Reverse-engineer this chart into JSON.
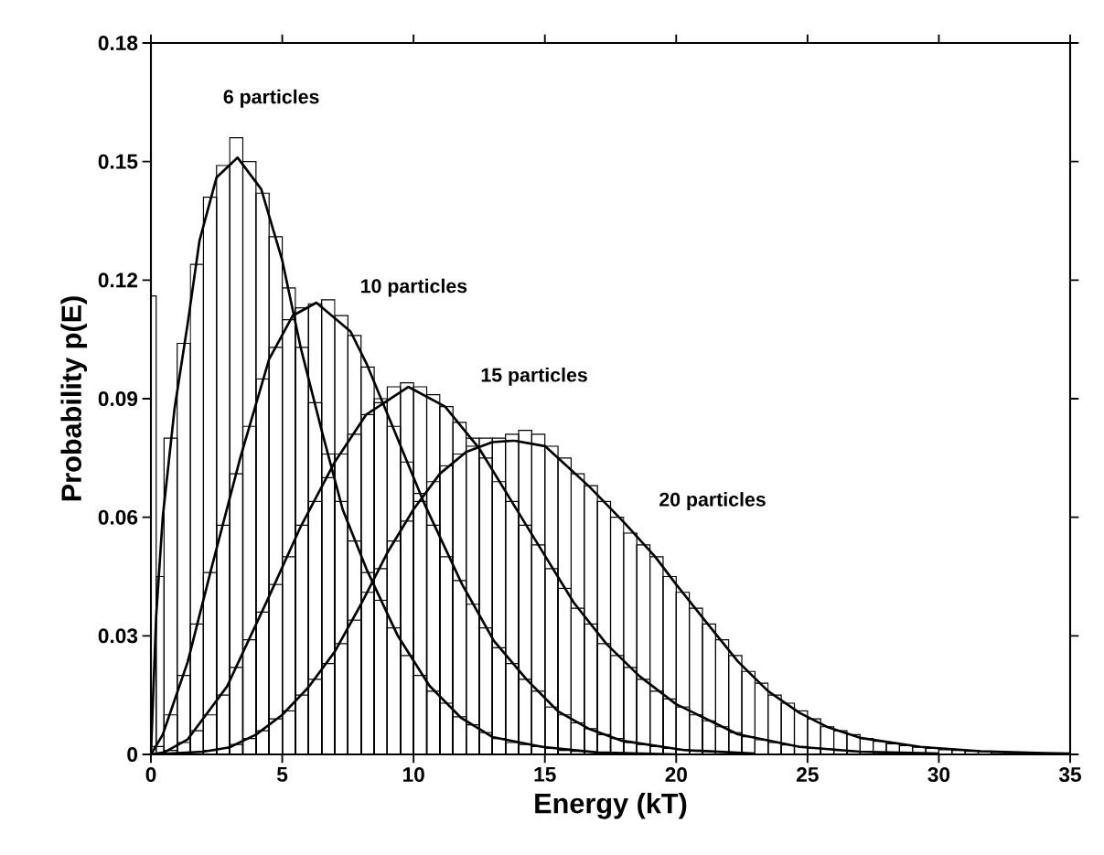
{
  "chart_data": {
    "type": "histogram",
    "xlabel": "Energy (kT)",
    "ylabel": "Probability p(E)",
    "xlim": [
      0,
      35
    ],
    "xticks": [
      0,
      5,
      10,
      15,
      20,
      25,
      30,
      35
    ],
    "ylim": [
      0,
      0.18
    ],
    "yticks": [
      0,
      0.03,
      0.06,
      0.09,
      0.12,
      0.15,
      0.18
    ],
    "annotations": [
      "6 particles",
      "10 particles",
      "15 particles",
      "20 particles"
    ],
    "series": [
      {
        "color": "#000000",
        "bins": [
          0,
          0.2,
          0.5,
          1.0,
          1.5,
          2.0,
          2.5,
          3.0,
          3.5,
          4.0,
          4.5,
          5.0,
          5.5,
          6.0,
          6.5,
          7.0,
          7.5,
          8.0,
          8.5,
          9.0,
          9.5,
          10.0,
          10.5,
          11.0,
          11.5,
          12.0,
          12.5,
          13.0,
          13.5,
          14.0,
          14.5,
          15.0,
          15.5,
          16.0,
          16.5
        ],
        "values": [
          0.116,
          0.045,
          0.08,
          0.104,
          0.124,
          0.141,
          0.149,
          0.156,
          0.15,
          0.142,
          0.131,
          0.118,
          0.103,
          0.089,
          0.076,
          0.064,
          0.054,
          0.046,
          0.039,
          0.032,
          0.025,
          0.02,
          0.016,
          0.013,
          0.0095,
          0.0075,
          0.0055,
          0.004,
          0.003,
          0.0025,
          0.002,
          0.0015,
          0.001,
          0.0008
        ]
      },
      {
        "color": "#000000",
        "bins": [
          0,
          0.5,
          1.0,
          1.5,
          2.0,
          2.5,
          3.0,
          3.5,
          4.0,
          4.5,
          5.0,
          5.5,
          6.0,
          6.5,
          7.0,
          7.5,
          8.0,
          8.5,
          9.0,
          9.5,
          10.0,
          10.5,
          11.0,
          11.5,
          12.0,
          12.5,
          13.0,
          13.5,
          14.0,
          14.5,
          15.0,
          15.5,
          16.0,
          16.5,
          17.0,
          17.5,
          18.0,
          18.5,
          19.0,
          19.5,
          20.0,
          20.5,
          21.0,
          21.5,
          22.0
        ],
        "values": [
          0.002,
          0.01,
          0.02,
          0.033,
          0.046,
          0.058,
          0.071,
          0.083,
          0.095,
          0.103,
          0.11,
          0.113,
          0.114,
          0.115,
          0.111,
          0.106,
          0.098,
          0.09,
          0.083,
          0.074,
          0.066,
          0.058,
          0.05,
          0.044,
          0.038,
          0.032,
          0.027,
          0.023,
          0.019,
          0.016,
          0.012,
          0.01,
          0.008,
          0.0065,
          0.005,
          0.004,
          0.003,
          0.0025,
          0.002,
          0.0015,
          0.0012,
          0.001,
          0.0008,
          null
        ]
      },
      {
        "color": "#000000",
        "bins": [
          0,
          0.5,
          1.0,
          1.5,
          2.0,
          2.5,
          3.0,
          3.5,
          4.0,
          4.5,
          5.0,
          5.5,
          6.0,
          6.5,
          7.0,
          7.5,
          8.0,
          8.5,
          9.0,
          9.5,
          10.0,
          10.5,
          11.0,
          11.5,
          12.0,
          12.5,
          13.0,
          13.5,
          14.0,
          14.5,
          15.0,
          15.5,
          16.0,
          16.5,
          17.0,
          17.5,
          18.0,
          18.5,
          19.0,
          19.5,
          20.0,
          20.5,
          21.0,
          21.5,
          22.0,
          22.5,
          23.0,
          23.5,
          24.0,
          24.5,
          25.0,
          25.5,
          26.0,
          26.5,
          27.0,
          27.5,
          28.0
        ],
        "values": [
          0.0002,
          0.001,
          0.003,
          0.006,
          0.01,
          0.015,
          0.022,
          0.029,
          0.036,
          0.043,
          0.05,
          0.058,
          0.064,
          0.07,
          0.076,
          0.081,
          0.086,
          0.089,
          0.093,
          0.094,
          0.093,
          0.091,
          0.088,
          0.084,
          0.08,
          0.075,
          0.069,
          0.064,
          0.058,
          0.053,
          0.047,
          0.042,
          0.037,
          0.033,
          0.028,
          0.025,
          0.022,
          0.019,
          0.016,
          0.014,
          0.012,
          0.01,
          0.0085,
          0.007,
          0.0055,
          0.0045,
          0.0037,
          0.003,
          0.0024,
          0.002,
          0.0016,
          0.0013,
          0.001,
          0.0008,
          null,
          0.0005
        ]
      },
      {
        "color": "#000000",
        "bins": [
          1.0,
          1.5,
          2.0,
          2.5,
          3.0,
          3.5,
          4.0,
          4.5,
          5.0,
          5.5,
          6.0,
          6.5,
          7.0,
          7.5,
          8.0,
          8.5,
          9.0,
          9.5,
          10.0,
          10.5,
          11.0,
          11.5,
          12.0,
          12.5,
          13.0,
          13.5,
          14.0,
          14.5,
          15.0,
          15.5,
          16.0,
          16.5,
          17.0,
          17.5,
          18.0,
          18.5,
          19.0,
          19.5,
          20.0,
          20.5,
          21.0,
          21.5,
          22.0,
          22.5,
          23.0,
          23.5,
          24.0,
          24.5,
          25.0,
          25.5,
          26.0,
          26.5,
          27.0,
          27.5,
          28.0,
          28.5,
          29.0,
          29.5,
          30.0,
          30.5,
          31.0,
          31.5,
          32.0,
          32.5,
          33.0,
          33.5,
          34.0,
          34.5,
          35.0
        ],
        "values": [
          0.0003,
          0.0006,
          0.001,
          0.0015,
          0.0025,
          0.004,
          0.006,
          0.009,
          0.011,
          0.015,
          0.019,
          0.023,
          0.028,
          0.034,
          0.041,
          0.047,
          0.054,
          0.059,
          0.064,
          0.069,
          0.073,
          0.076,
          0.078,
          0.08,
          0.08,
          0.081,
          0.082,
          0.081,
          0.078,
          0.075,
          0.071,
          0.068,
          0.064,
          0.06,
          0.056,
          0.053,
          0.05,
          0.045,
          0.041,
          0.037,
          0.033,
          0.029,
          0.025,
          0.021,
          0.018,
          0.015,
          0.013,
          0.011,
          0.009,
          0.007,
          0.006,
          0.005,
          0.004,
          0.0033,
          0.0027,
          0.0022,
          0.0018,
          0.0015,
          0.0012,
          0.001,
          0.0008,
          0.0007,
          0.0005,
          0.0004,
          0.0003,
          0.0003,
          0.0002,
          0.0002
        ]
      },
      {
        "type": "line",
        "color": "#000000",
        "x": [
          0,
          0.2,
          0.45,
          0.9,
          1.4,
          1.85,
          2.5,
          3.3,
          4.2,
          5.0,
          5.7,
          6.5,
          7.3,
          8.2,
          9.4,
          10.6,
          11.8,
          13.0,
          14.9,
          17.0,
          20.0
        ],
        "values": [
          0,
          0.035,
          0.06,
          0.0875,
          0.109,
          0.13,
          0.146,
          0.151,
          0.143,
          0.125,
          0.103,
          0.082,
          0.062,
          0.047,
          0.03,
          0.0174,
          0.0093,
          0.0044,
          0.0019,
          0.0005,
          0
        ]
      },
      {
        "type": "line",
        "color": "#000000",
        "x": [
          0,
          0.45,
          1.4,
          2.3,
          3.4,
          4.5,
          5.4,
          6.3,
          7.6,
          8.2,
          9.2,
          10.4,
          11.85,
          13.06,
          14.3,
          15.5,
          16.7,
          17.9,
          20.3,
          23.0
        ],
        "values": [
          0,
          0.005,
          0.0234,
          0.047,
          0.075,
          0.1,
          0.111,
          0.1143,
          0.107,
          0.099,
          0.083,
          0.0636,
          0.043,
          0.0287,
          0.019,
          0.0109,
          0.0064,
          0.0035,
          0.0011,
          0.0002
        ]
      },
      {
        "type": "line",
        "color": "#000000",
        "x": [
          0,
          0.5,
          1.4,
          2.9,
          4.5,
          5.7,
          7.0,
          8.2,
          9.8,
          11.2,
          12.5,
          13.7,
          14.9,
          16.1,
          17.35,
          18.6,
          20.0,
          22.35,
          24.7,
          27.0,
          30.0
        ],
        "values": [
          0,
          0.0005,
          0.0038,
          0.0172,
          0.04,
          0.0576,
          0.074,
          0.086,
          0.093,
          0.088,
          0.0774,
          0.0644,
          0.0514,
          0.0384,
          0.0279,
          0.0198,
          0.0127,
          0.0051,
          0.0019,
          0.0007,
          0.0002
        ]
      },
      {
        "type": "line",
        "color": "#000000",
        "x": [
          0,
          2,
          3,
          4,
          5,
          6,
          7,
          8,
          9,
          10,
          11,
          12,
          13,
          13.8,
          15,
          15.5,
          16.7,
          18,
          19.2,
          20,
          21.2,
          22.35,
          23.5,
          24.7,
          25.8,
          27,
          29.3,
          31.6,
          34,
          35
        ],
        "values": [
          0,
          0.0007,
          0.0018,
          0.005,
          0.01,
          0.017,
          0.026,
          0.038,
          0.051,
          0.062,
          0.071,
          0.0765,
          0.079,
          0.0794,
          0.078,
          0.075,
          0.0677,
          0.0588,
          0.05,
          0.043,
          0.033,
          0.0235,
          0.016,
          0.0105,
          0.0068,
          0.0042,
          0.0019,
          0.0008,
          0.0003,
          0.0002
        ]
      }
    ]
  }
}
